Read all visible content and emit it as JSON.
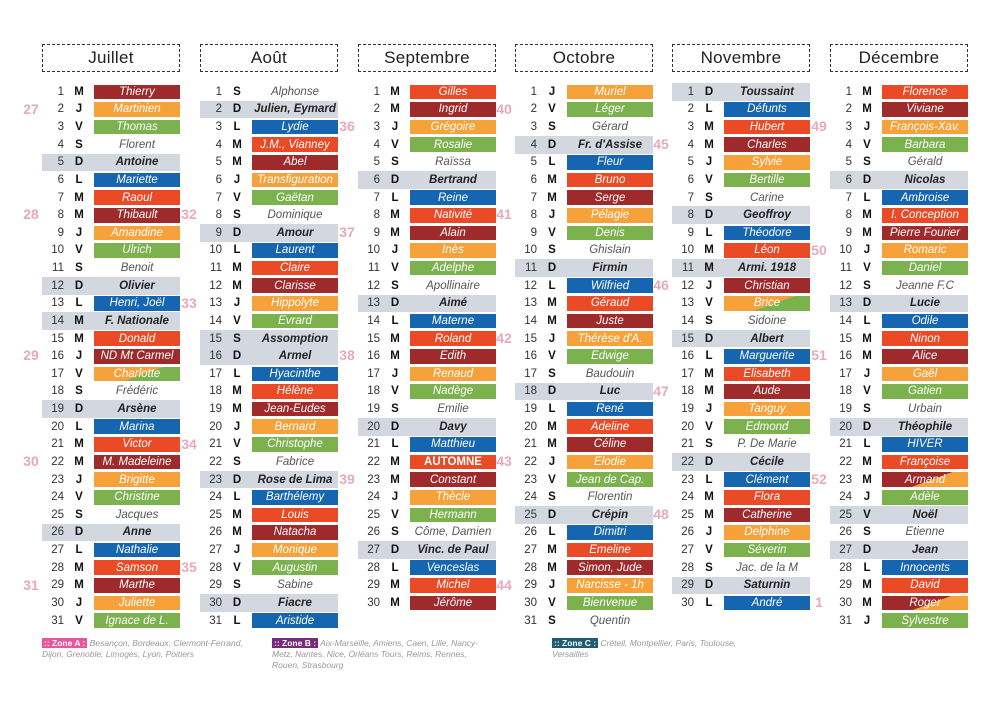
{
  "colors": {
    "blue": "#1565b0",
    "red": "#ea4a26",
    "wine": "#9e2a2b",
    "orange": "#f6a13a",
    "green": "#7cb24e",
    "sunday_band": "#d3d7e0"
  },
  "months": [
    {
      "title": "Juillet",
      "weeks": [
        [
          2,
          "27"
        ],
        [
          8,
          "28"
        ],
        [
          16,
          "29"
        ],
        [
          22,
          "30"
        ],
        [
          29,
          "31"
        ]
      ],
      "days": [
        [
          "1",
          "M",
          "Thierry",
          "W"
        ],
        [
          "2",
          "J",
          "Martinien",
          "O"
        ],
        [
          "3",
          "V",
          "Thomas",
          "G"
        ],
        [
          "4",
          "S",
          "Florent",
          "S"
        ],
        [
          "5",
          "D",
          "Antoine",
          "D"
        ],
        [
          "6",
          "L",
          "Mariette",
          "B"
        ],
        [
          "7",
          "M",
          "Raoul",
          "R"
        ],
        [
          "8",
          "M",
          "Thibault",
          "W"
        ],
        [
          "9",
          "J",
          "Amandine",
          "O"
        ],
        [
          "10",
          "V",
          "Ulrich",
          "G"
        ],
        [
          "11",
          "S",
          "Benoit",
          "S"
        ],
        [
          "12",
          "D",
          "Olivier",
          "D"
        ],
        [
          "13",
          "L",
          "Henri, Joël",
          "B"
        ],
        [
          "14",
          "M",
          "F. Nationale",
          "D"
        ],
        [
          "15",
          "M",
          "Donald",
          "R"
        ],
        [
          "16",
          "J",
          "ND Mt Carmel",
          "W"
        ],
        [
          "17",
          "V",
          "Charlotte",
          "OG"
        ],
        [
          "18",
          "S",
          "Frédéric",
          "S"
        ],
        [
          "19",
          "D",
          "Arsène",
          "D"
        ],
        [
          "20",
          "L",
          "Marina",
          "B"
        ],
        [
          "21",
          "M",
          "Victor",
          "R"
        ],
        [
          "22",
          "M",
          "M. Madeleine",
          "W"
        ],
        [
          "23",
          "J",
          "Brigitte",
          "O"
        ],
        [
          "24",
          "V",
          "Christine",
          "G"
        ],
        [
          "25",
          "S",
          "Jacques",
          "S"
        ],
        [
          "26",
          "D",
          "Anne",
          "D"
        ],
        [
          "27",
          "L",
          "Nathalie",
          "B"
        ],
        [
          "28",
          "M",
          "Samson",
          "R"
        ],
        [
          "29",
          "M",
          "Marthe",
          "W"
        ],
        [
          "30",
          "J",
          "Juliette",
          "O"
        ],
        [
          "31",
          "V",
          "Ignace de L.",
          "G"
        ]
      ]
    },
    {
      "title": "Août",
      "weeks": [
        [
          8,
          "32"
        ],
        [
          13,
          "33"
        ],
        [
          21,
          "34"
        ],
        [
          28,
          "35"
        ]
      ],
      "days": [
        [
          "1",
          "S",
          "Alphonse",
          "S"
        ],
        [
          "2",
          "D",
          "Julien, Eymard",
          "D"
        ],
        [
          "3",
          "L",
          "Lydie",
          "B"
        ],
        [
          "4",
          "M",
          "J.M., Vianney",
          "R"
        ],
        [
          "5",
          "M",
          "Abel",
          "W"
        ],
        [
          "6",
          "J",
          "Transfiguration",
          "O"
        ],
        [
          "7",
          "V",
          "Gaëtan",
          "G"
        ],
        [
          "8",
          "S",
          "Dominique",
          "S"
        ],
        [
          "9",
          "D",
          "Amour",
          "D"
        ],
        [
          "10",
          "L",
          "Laurent",
          "B"
        ],
        [
          "11",
          "M",
          "Claire",
          "R"
        ],
        [
          "12",
          "M",
          "Clarisse",
          "W"
        ],
        [
          "13",
          "J",
          "Hippolyte",
          "O"
        ],
        [
          "14",
          "V",
          "Evrard",
          "G"
        ],
        [
          "15",
          "S",
          "Assomption",
          "D"
        ],
        [
          "16",
          "D",
          "Armel",
          "D"
        ],
        [
          "17",
          "L",
          "Hyacinthe",
          "B"
        ],
        [
          "18",
          "M",
          "Hélène",
          "R"
        ],
        [
          "19",
          "M",
          "Jean-Eudes",
          "W"
        ],
        [
          "20",
          "J",
          "Bernard",
          "O"
        ],
        [
          "21",
          "V",
          "Christophe",
          "G"
        ],
        [
          "22",
          "S",
          "Fabrice",
          "S"
        ],
        [
          "23",
          "D",
          "Rose de Lima",
          "D"
        ],
        [
          "24",
          "L",
          "Barthélemy",
          "B"
        ],
        [
          "25",
          "M",
          "Louis",
          "R"
        ],
        [
          "26",
          "M",
          "Natacha",
          "W"
        ],
        [
          "27",
          "J",
          "Monique",
          "O"
        ],
        [
          "28",
          "V",
          "Augustin",
          "G"
        ],
        [
          "29",
          "S",
          "Sabine",
          "S"
        ],
        [
          "30",
          "D",
          "Fiacre",
          "D"
        ],
        [
          "31",
          "L",
          "Aristide",
          "B"
        ]
      ]
    },
    {
      "title": "Septembre",
      "weeks": [
        [
          3,
          "36"
        ],
        [
          9,
          "37"
        ],
        [
          16,
          "38"
        ],
        [
          23,
          "39"
        ]
      ],
      "days": [
        [
          "1",
          "M",
          "Gilles",
          "R"
        ],
        [
          "2",
          "M",
          "Ingrid",
          "W"
        ],
        [
          "3",
          "J",
          "Grégoire",
          "O"
        ],
        [
          "4",
          "V",
          "Rosalie",
          "G"
        ],
        [
          "5",
          "S",
          "Raïssa",
          "S"
        ],
        [
          "6",
          "D",
          "Bertrand",
          "D"
        ],
        [
          "7",
          "L",
          "Reine",
          "B"
        ],
        [
          "8",
          "M",
          "Nativité",
          "R"
        ],
        [
          "9",
          "M",
          "Alain",
          "W"
        ],
        [
          "10",
          "J",
          "Inès",
          "O"
        ],
        [
          "11",
          "V",
          "Adelphe",
          "G"
        ],
        [
          "12",
          "S",
          "Apollinaire",
          "S"
        ],
        [
          "13",
          "D",
          "Aimé",
          "D"
        ],
        [
          "14",
          "L",
          "Materne",
          "B"
        ],
        [
          "15",
          "M",
          "Roland",
          "R"
        ],
        [
          "16",
          "M",
          "Edith",
          "W"
        ],
        [
          "17",
          "J",
          "Renaud",
          "O"
        ],
        [
          "18",
          "V",
          "Nadège",
          "G"
        ],
        [
          "19",
          "S",
          "Emilie",
          "S"
        ],
        [
          "20",
          "D",
          "Davy",
          "D"
        ],
        [
          "21",
          "L",
          "Matthieu",
          "B"
        ],
        [
          "22",
          "M",
          "AUTOMNE",
          "R bold"
        ],
        [
          "23",
          "M",
          "Constant",
          "W"
        ],
        [
          "24",
          "J",
          "Thècle",
          "O"
        ],
        [
          "25",
          "V",
          "Hermann",
          "G"
        ],
        [
          "26",
          "S",
          "Côme, Damien",
          "S"
        ],
        [
          "27",
          "D",
          "Vinc. de Paul",
          "D"
        ],
        [
          "28",
          "L",
          "Venceslas",
          "B"
        ],
        [
          "29",
          "M",
          "Michel",
          "R"
        ],
        [
          "30",
          "M",
          "Jérôme",
          "W"
        ]
      ]
    },
    {
      "title": "Octobre",
      "weeks": [
        [
          2,
          "40"
        ],
        [
          8,
          "41"
        ],
        [
          15,
          "42"
        ],
        [
          22,
          "43"
        ],
        [
          29,
          "44"
        ]
      ],
      "days": [
        [
          "1",
          "J",
          "Muriel",
          "O"
        ],
        [
          "2",
          "V",
          "Léger",
          "G"
        ],
        [
          "3",
          "S",
          "Gérard",
          "S"
        ],
        [
          "4",
          "D",
          "Fr. d'Assise",
          "D"
        ],
        [
          "5",
          "L",
          "Fleur",
          "B"
        ],
        [
          "6",
          "M",
          "Bruno",
          "R"
        ],
        [
          "7",
          "M",
          "Serge",
          "W"
        ],
        [
          "8",
          "J",
          "Pélagie",
          "O"
        ],
        [
          "9",
          "V",
          "Denis",
          "G"
        ],
        [
          "10",
          "S",
          "Ghislain",
          "S"
        ],
        [
          "11",
          "D",
          "Firmin",
          "D"
        ],
        [
          "12",
          "L",
          "Wilfried",
          "B"
        ],
        [
          "13",
          "M",
          "Géraud",
          "R"
        ],
        [
          "14",
          "M",
          "Juste",
          "W"
        ],
        [
          "15",
          "J",
          "Thérèse d'A.",
          "O"
        ],
        [
          "16",
          "V",
          "Edwige",
          "G"
        ],
        [
          "17",
          "S",
          "Baudouin",
          "S"
        ],
        [
          "18",
          "D",
          "Luc",
          "D"
        ],
        [
          "19",
          "L",
          "René",
          "B"
        ],
        [
          "20",
          "M",
          "Adeline",
          "R"
        ],
        [
          "21",
          "M",
          "Céline",
          "W"
        ],
        [
          "22",
          "J",
          "Elodie",
          "O"
        ],
        [
          "23",
          "V",
          "Jean de Cap.",
          "G"
        ],
        [
          "24",
          "S",
          "Florentin",
          "S"
        ],
        [
          "25",
          "D",
          "Crépin",
          "D"
        ],
        [
          "26",
          "L",
          "Dimitri",
          "B"
        ],
        [
          "27",
          "M",
          "Emeline",
          "R"
        ],
        [
          "28",
          "M",
          "Simon, Jude",
          "W"
        ],
        [
          "29",
          "J",
          "Narcisse - 1h",
          "O"
        ],
        [
          "30",
          "V",
          "Bienvenue",
          "G"
        ],
        [
          "31",
          "S",
          "Quentin",
          "S"
        ]
      ]
    },
    {
      "title": "Novembre",
      "weeks": [
        [
          4,
          "45"
        ],
        [
          12,
          "46"
        ],
        [
          18,
          "47"
        ],
        [
          25,
          "48"
        ]
      ],
      "days": [
        [
          "1",
          "D",
          "Toussaint",
          "D"
        ],
        [
          "2",
          "L",
          "Défunts",
          "B"
        ],
        [
          "3",
          "M",
          "Hubert",
          "R"
        ],
        [
          "4",
          "M",
          "Charles",
          "W"
        ],
        [
          "5",
          "J",
          "Sylvie",
          "O"
        ],
        [
          "6",
          "V",
          "Bertille",
          "G"
        ],
        [
          "7",
          "S",
          "Carine",
          "S"
        ],
        [
          "8",
          "D",
          "Geoffroy",
          "D"
        ],
        [
          "9",
          "L",
          "Théodore",
          "B"
        ],
        [
          "10",
          "M",
          "Léon",
          "R"
        ],
        [
          "11",
          "M",
          "Armi. 1918",
          "D"
        ],
        [
          "12",
          "J",
          "Christian",
          "W"
        ],
        [
          "13",
          "V",
          "Brice",
          "OG"
        ],
        [
          "14",
          "S",
          "Sidoine",
          "S"
        ],
        [
          "15",
          "D",
          "Albert",
          "D"
        ],
        [
          "16",
          "L",
          "Marguerite",
          "B"
        ],
        [
          "17",
          "M",
          "Elisabeth",
          "R"
        ],
        [
          "18",
          "M",
          "Aude",
          "W"
        ],
        [
          "19",
          "J",
          "Tanguy",
          "O"
        ],
        [
          "20",
          "V",
          "Edmond",
          "G"
        ],
        [
          "21",
          "S",
          "P. De Marie",
          "S"
        ],
        [
          "22",
          "D",
          "Cécile",
          "D"
        ],
        [
          "23",
          "L",
          "Clément",
          "B"
        ],
        [
          "24",
          "M",
          "Flora",
          "R"
        ],
        [
          "25",
          "M",
          "Catherine",
          "W"
        ],
        [
          "26",
          "J",
          "Delphine",
          "O"
        ],
        [
          "27",
          "V",
          "Séverin",
          "G"
        ],
        [
          "28",
          "S",
          "Jac. de la M",
          "S"
        ],
        [
          "29",
          "D",
          "Saturnin",
          "D"
        ],
        [
          "30",
          "L",
          "André",
          "B"
        ]
      ]
    },
    {
      "title": "Décembre",
      "weeks": [
        [
          3,
          "49"
        ],
        [
          10,
          "50"
        ],
        [
          16,
          "51"
        ],
        [
          23,
          "52"
        ],
        [
          30,
          "1"
        ]
      ],
      "days": [
        [
          "1",
          "M",
          "Florence",
          "R"
        ],
        [
          "2",
          "M",
          "Viviane",
          "W"
        ],
        [
          "3",
          "J",
          "François-Xav.",
          "O"
        ],
        [
          "4",
          "V",
          "Barbara",
          "G"
        ],
        [
          "5",
          "S",
          "Gérald",
          "S"
        ],
        [
          "6",
          "D",
          "Nicolas",
          "D"
        ],
        [
          "7",
          "L",
          "Ambroise",
          "B"
        ],
        [
          "8",
          "M",
          "I. Conception",
          "R"
        ],
        [
          "9",
          "M",
          "Pierre Fourier",
          "W"
        ],
        [
          "10",
          "J",
          "Romaric",
          "O"
        ],
        [
          "11",
          "V",
          "Daniel",
          "G"
        ],
        [
          "12",
          "S",
          "Jeanne F.C",
          "S"
        ],
        [
          "13",
          "D",
          "Lucie",
          "D"
        ],
        [
          "14",
          "L",
          "Odile",
          "B"
        ],
        [
          "15",
          "M",
          "Ninon",
          "R"
        ],
        [
          "16",
          "M",
          "Alice",
          "W"
        ],
        [
          "17",
          "J",
          "Gaël",
          "O"
        ],
        [
          "18",
          "V",
          "Gatien",
          "G"
        ],
        [
          "19",
          "S",
          "Urbain",
          "S"
        ],
        [
          "20",
          "D",
          "Théophile",
          "D"
        ],
        [
          "21",
          "L",
          "HIVER",
          "B"
        ],
        [
          "22",
          "M",
          "Françoise",
          "R"
        ],
        [
          "23",
          "M",
          "Armand",
          "WO"
        ],
        [
          "24",
          "J",
          "Adèle",
          "G"
        ],
        [
          "25",
          "V",
          "Noël",
          "D"
        ],
        [
          "26",
          "S",
          "Etienne",
          "S"
        ],
        [
          "27",
          "D",
          "Jean",
          "D"
        ],
        [
          "28",
          "L",
          "Innocents",
          "B"
        ],
        [
          "29",
          "M",
          "David",
          "R"
        ],
        [
          "30",
          "M",
          "Roger",
          "WO"
        ],
        [
          "31",
          "J",
          "Sylvestre",
          "G"
        ]
      ]
    }
  ],
  "legend": [
    {
      "tag": ":: Zone A :",
      "text": "Besançon, Bordeaux, Clermont-Ferrand, Dijon, Grenoble, Limoges, Lyon, Poitiers",
      "color": "#e8559a"
    },
    {
      "tag": ":: Zone B :",
      "text": "Aix-Marseille, Amiens, Caen, Lille, Nancy-Metz, Nantes, Nice, Orléans Tours, Reims, Rennes, Rouen, Strasbourg",
      "color": "#7a2a7a"
    },
    {
      "tag": ":: Zone C :",
      "text": "Créteil, Montpellier, Paris, Toulouse, Versailles",
      "color": "#1f5c73"
    }
  ]
}
